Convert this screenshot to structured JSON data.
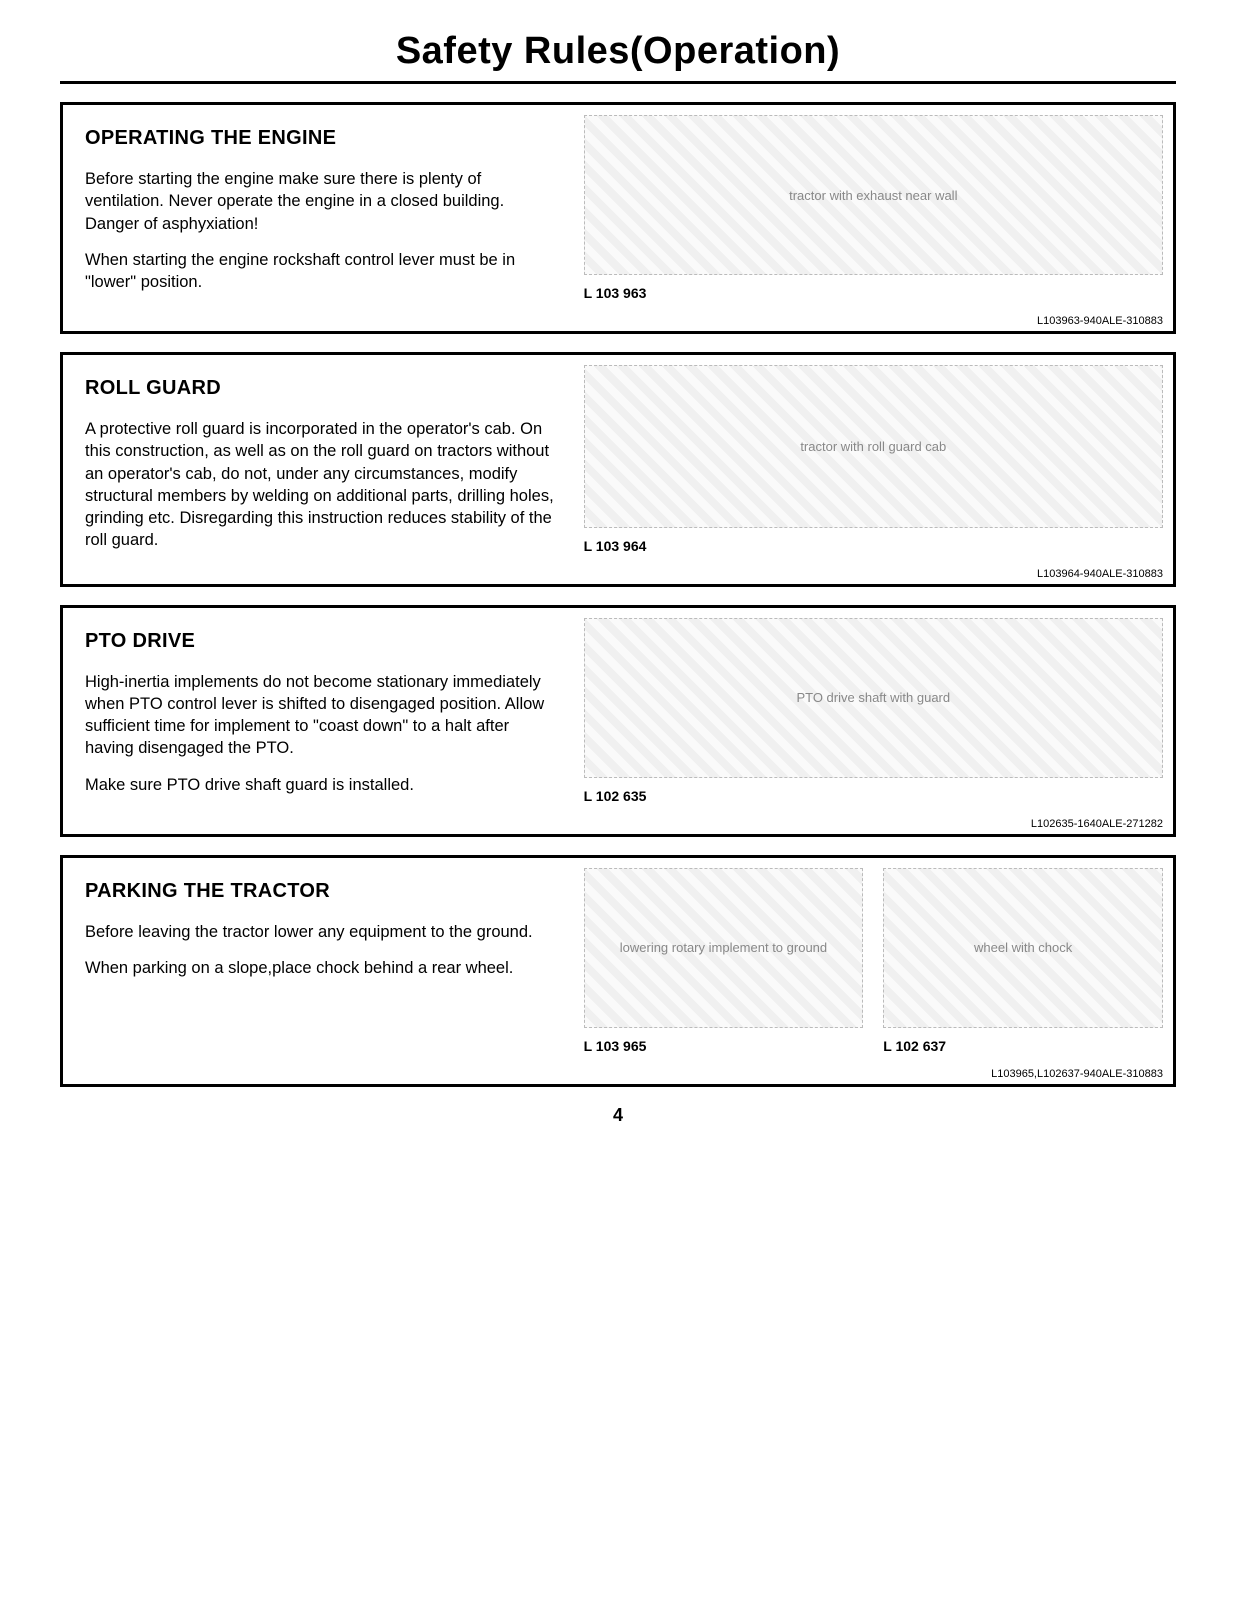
{
  "page": {
    "title": "Safety Rules(Operation)",
    "number": "4"
  },
  "sections": [
    {
      "heading": "OPERATING THE ENGINE",
      "paragraphs": [
        "Before starting the engine make sure there is plenty of ventilation. Never operate the engine in a closed building. Danger of asphyxiation!",
        "When starting the engine rockshaft control lever must be in \"lower\" position."
      ],
      "figures": [
        {
          "label": "L 103 963",
          "alt": "tractor with exhaust near wall"
        }
      ],
      "ref": "L103963-940ALE-310883"
    },
    {
      "heading": "ROLL GUARD",
      "paragraphs": [
        "A protective roll guard is incorporated in the operator's cab. On this construction, as well as on the roll guard on tractors without an operator's cab, do not, under any circumstances, modify structural members by welding on additional parts, drilling holes, grinding etc. Disregarding this instruction reduces stability of the roll guard."
      ],
      "figures": [
        {
          "label": "L 103 964",
          "alt": "tractor with roll guard cab"
        }
      ],
      "ref": "L103964-940ALE-310883"
    },
    {
      "heading": "PTO DRIVE",
      "paragraphs": [
        "High-inertia implements do not become stationary immediately when PTO control lever is shifted to disengaged position. Allow sufficient time for implement to \"coast down\" to a halt after having disengaged the PTO.",
        "Make sure PTO drive shaft guard is installed."
      ],
      "figures": [
        {
          "label": "L 102 635",
          "alt": "PTO drive shaft with guard"
        }
      ],
      "ref": "L102635-1640ALE-271282"
    },
    {
      "heading": "PARKING THE TRACTOR",
      "paragraphs": [
        "Before leaving the tractor lower any equipment to the ground.",
        "When parking on a slope,place chock behind a rear wheel."
      ],
      "figures": [
        {
          "label": "L 103 965",
          "alt": "lowering rotary implement to ground"
        },
        {
          "label": "L 102 637",
          "alt": "wheel with chock"
        }
      ],
      "ref": "L103965,L102637-940ALE-310883"
    }
  ]
}
